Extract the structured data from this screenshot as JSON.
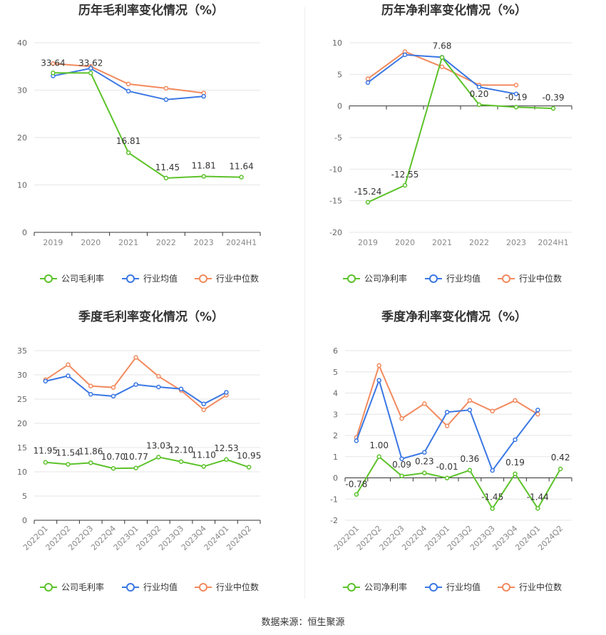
{
  "source": "数据来源：恒生聚源",
  "colors": {
    "company": "#5cc22a",
    "avg": "#3a77e3",
    "median": "#f28a5e"
  },
  "chart_data": [
    {
      "type": "line",
      "title": "历年毛利率变化情况（%）",
      "categories": [
        "2019",
        "2020",
        "2021",
        "2022",
        "2023",
        "2024H1"
      ],
      "ylim": [
        0,
        40
      ],
      "yticks": [
        0,
        10,
        20,
        30,
        40
      ],
      "series": [
        {
          "name": "公司毛利率",
          "key": "company",
          "values": [
            33.64,
            33.62,
            16.81,
            11.45,
            11.81,
            11.64
          ],
          "labels": [
            "33.64",
            "33.62",
            "16.81",
            "11.45",
            "11.81",
            "11.64"
          ]
        },
        {
          "name": "行业均值",
          "key": "avg",
          "values": [
            33.0,
            34.6,
            29.8,
            28.0,
            28.7,
            null
          ]
        },
        {
          "name": "行业中位数",
          "key": "median",
          "values": [
            35.6,
            35.0,
            31.3,
            30.4,
            29.4,
            null
          ]
        }
      ],
      "legend": "bottom"
    },
    {
      "type": "line",
      "title": "历年净利率变化情况（%）",
      "categories": [
        "2019",
        "2020",
        "2021",
        "2022",
        "2023",
        "2024H1"
      ],
      "ylim": [
        -20,
        10
      ],
      "yticks": [
        -20,
        -15,
        -10,
        -5,
        0,
        5,
        10
      ],
      "series": [
        {
          "name": "公司净利率",
          "key": "company",
          "values": [
            -15.24,
            -12.55,
            7.68,
            0.2,
            -0.19,
            -0.39
          ],
          "labels": [
            "-15.24",
            "-12.55",
            "7.68",
            "0.20",
            "-0.19",
            "-0.39"
          ]
        },
        {
          "name": "行业均值",
          "key": "avg",
          "values": [
            3.7,
            8.1,
            7.7,
            3.0,
            1.9,
            null
          ]
        },
        {
          "name": "行业中位数",
          "key": "median",
          "values": [
            4.3,
            8.6,
            6.2,
            3.3,
            3.3,
            null
          ]
        }
      ],
      "legend": "bottom"
    },
    {
      "type": "line",
      "title": "季度毛利率变化情况（%）",
      "categories": [
        "2022Q1",
        "2022Q2",
        "2022Q3",
        "2022Q4",
        "2023Q1",
        "2023Q2",
        "2023Q3",
        "2023Q4",
        "2024Q1",
        "2024Q2"
      ],
      "ylim": [
        0,
        35
      ],
      "yticks": [
        0,
        5,
        10,
        15,
        20,
        25,
        30,
        35
      ],
      "series": [
        {
          "name": "公司毛利率",
          "key": "company",
          "values": [
            11.95,
            11.54,
            11.86,
            10.7,
            10.77,
            13.03,
            12.1,
            11.1,
            12.53,
            10.95
          ],
          "labels": [
            "11.95",
            "11.54",
            "11.86",
            "10.70",
            "10.77",
            "13.03",
            "12.10",
            "11.10",
            "12.53",
            "10.95"
          ]
        },
        {
          "name": "行业均值",
          "key": "avg",
          "values": [
            28.7,
            29.8,
            26.0,
            25.6,
            28.0,
            27.5,
            27.1,
            24.0,
            26.4,
            null
          ]
        },
        {
          "name": "行业中位数",
          "key": "median",
          "values": [
            29.0,
            32.1,
            27.7,
            27.4,
            33.6,
            29.7,
            26.8,
            22.8,
            25.8,
            null
          ]
        }
      ],
      "legend": "bottom"
    },
    {
      "type": "line",
      "title": "季度净利率变化情况（%）",
      "categories": [
        "2022Q1",
        "2022Q2",
        "2022Q3",
        "2022Q4",
        "2023Q1",
        "2023Q2",
        "2023Q3",
        "2023Q4",
        "2024Q1",
        "2024Q2"
      ],
      "ylim": [
        -2,
        6
      ],
      "yticks": [
        -2,
        -1,
        0,
        1,
        2,
        3,
        4,
        5,
        6
      ],
      "series": [
        {
          "name": "公司净利率",
          "key": "company",
          "values": [
            -0.78,
            1.0,
            0.09,
            0.23,
            -0.01,
            0.36,
            -1.45,
            0.19,
            -1.44,
            0.42
          ],
          "labels": [
            "-0.78",
            "1.00",
            "0.09",
            "0.23",
            "-0.01",
            "0.36",
            "-1.45",
            "0.19",
            "-1.44",
            "0.42"
          ]
        },
        {
          "name": "行业均值",
          "key": "avg",
          "values": [
            1.75,
            4.6,
            0.9,
            1.2,
            3.1,
            3.2,
            0.35,
            1.8,
            3.2,
            null
          ]
        },
        {
          "name": "行业中位数",
          "key": "median",
          "values": [
            1.9,
            5.3,
            2.8,
            3.5,
            2.45,
            3.65,
            3.15,
            3.65,
            3.0,
            null
          ]
        }
      ],
      "legend": "bottom"
    }
  ]
}
